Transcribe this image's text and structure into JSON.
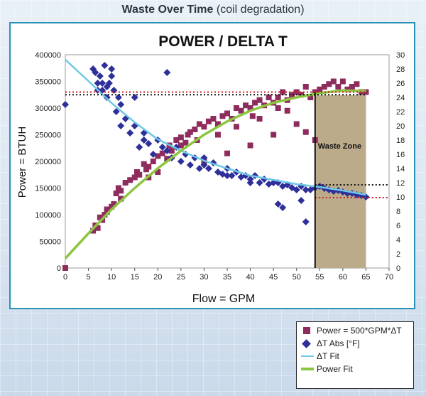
{
  "header": {
    "title_main": "Waste Over Time",
    "title_sub": "(coil degradation)"
  },
  "colors": {
    "frame": "#2a91b6",
    "power_points": "#8f2c5e",
    "dt_points": "#2e2f99",
    "dt_fit": "#6ec8e6",
    "power_fit": "#8cc63f",
    "waste_zone": "#bcab8a",
    "guide_red": "#cc2020",
    "guide_black": "#111111"
  },
  "chart_data": {
    "type": "scatter",
    "title": "POWER / DELTA T",
    "xlabel": "Flow = GPM",
    "ylabel": "Power = BTUH",
    "y2label": "",
    "xlim": [
      0,
      70
    ],
    "ylim": [
      0,
      400000
    ],
    "y2lim": [
      0,
      30
    ],
    "x_ticks": [
      "0",
      "5",
      "10",
      "15",
      "20",
      "25",
      "30",
      "35",
      "40",
      "45",
      "50",
      "55",
      "60",
      "65",
      "70"
    ],
    "y_ticks": [
      "0",
      "50000",
      "100000",
      "150000",
      "200000",
      "250000",
      "300000",
      "350000",
      "400000"
    ],
    "y2_ticks": [
      "0",
      "2",
      "4",
      "6",
      "8",
      "10",
      "12",
      "14",
      "16",
      "18",
      "20",
      "22",
      "24",
      "26",
      "28",
      "30"
    ],
    "waste_zone": {
      "label": "Waste Zone",
      "x_start": 54,
      "x_end": 65
    },
    "reference_lines": [
      {
        "axis": "left",
        "value": 330000,
        "color": "#cc2020",
        "style": "dotted"
      },
      {
        "axis": "left",
        "value": 325000,
        "color": "#111111",
        "style": "dotted"
      },
      {
        "axis": "right",
        "value": 11.7,
        "color": "#111111",
        "style": "dotted"
      },
      {
        "axis": "right",
        "value": 9.9,
        "color": "#cc2020",
        "style": "dotted"
      }
    ],
    "series": [
      {
        "name": "Power = 500*GPM*ΔT",
        "axis": "left",
        "marker": "square",
        "x": [
          0,
          6,
          6.5,
          7,
          7.5,
          8,
          8.5,
          9,
          10,
          10.5,
          11,
          11.5,
          12,
          13,
          14,
          15,
          15.5,
          16,
          17,
          17.5,
          18,
          19,
          20,
          21,
          22,
          22.5,
          23,
          24,
          25,
          26,
          26.5,
          27,
          28,
          28.5,
          29,
          30,
          31,
          32,
          33,
          34,
          35,
          36,
          37,
          38,
          39,
          40,
          40.5,
          41,
          42,
          43,
          44,
          45,
          46,
          47,
          48,
          49,
          50,
          51,
          52,
          53,
          54,
          55,
          56,
          57,
          58,
          59,
          60,
          61,
          62,
          63,
          64,
          65,
          30,
          35,
          40,
          45,
          50,
          52,
          54,
          42,
          46,
          48,
          25,
          33,
          37,
          18,
          20,
          12,
          9
        ],
        "y": [
          0,
          70000,
          80000,
          75000,
          95000,
          90000,
          100000,
          105000,
          115000,
          120000,
          140000,
          150000,
          145000,
          160000,
          165000,
          170000,
          180000,
          175000,
          195000,
          185000,
          190000,
          200000,
          210000,
          215000,
          205000,
          230000,
          220000,
          240000,
          245000,
          235000,
          250000,
          255000,
          260000,
          240000,
          270000,
          265000,
          275000,
          280000,
          270000,
          285000,
          290000,
          280000,
          300000,
          295000,
          305000,
          300000,
          285000,
          310000,
          315000,
          305000,
          320000,
          310000,
          320000,
          330000,
          315000,
          325000,
          330000,
          325000,
          340000,
          320000,
          330000,
          335000,
          340000,
          345000,
          350000,
          340000,
          350000,
          335000,
          340000,
          345000,
          330000,
          330000,
          200000,
          215000,
          230000,
          250000,
          270000,
          255000,
          240000,
          280000,
          300000,
          295000,
          230000,
          250000,
          265000,
          170000,
          180000,
          130000,
          110000
        ]
      },
      {
        "name": "ΔT Abs [°F]",
        "axis": "right",
        "marker": "diamond",
        "x": [
          0,
          6,
          6.5,
          7,
          7.5,
          8,
          8.5,
          9,
          9.5,
          10,
          10.5,
          11,
          11.5,
          12,
          13,
          14,
          15,
          16,
          17,
          18,
          19,
          20,
          21,
          22,
          23,
          24,
          25,
          26,
          27,
          28,
          29,
          30,
          31,
          32,
          33,
          34,
          35,
          36,
          37,
          38,
          39,
          40,
          41,
          42,
          43,
          44,
          45,
          46,
          47,
          48,
          49,
          50,
          51,
          52,
          53,
          54,
          55,
          56,
          57,
          58,
          59,
          60,
          61,
          62,
          63,
          64,
          65,
          8,
          9,
          10,
          15,
          17,
          22,
          7,
          12,
          46,
          47,
          51,
          52,
          30,
          35,
          40
        ],
        "y": [
          23,
          28,
          27.5,
          26,
          27,
          25,
          28.5,
          24,
          26,
          28,
          25,
          22,
          24,
          20,
          21,
          19,
          20,
          17,
          18,
          17.5,
          16,
          18,
          17,
          16.5,
          15.5,
          17,
          15,
          16,
          14.5,
          15.5,
          14,
          14.5,
          14,
          14.8,
          13.5,
          13.2,
          14,
          13,
          13.5,
          12.8,
          13,
          12.5,
          13,
          12,
          12.5,
          11.8,
          12,
          12,
          11.5,
          11.7,
          11.3,
          11,
          11.5,
          11,
          11,
          11.3,
          11.5,
          11.2,
          11,
          10.8,
          10.9,
          10.7,
          10.5,
          10.5,
          10.3,
          10.2,
          10,
          26,
          25.5,
          27,
          24,
          19,
          27.5,
          25,
          23,
          9,
          8.5,
          9.5,
          6.5,
          15.5,
          13,
          12
        ]
      },
      {
        "name": "ΔT Fit",
        "axis": "right",
        "marker": "line",
        "x": [
          0,
          5,
          10,
          15,
          20,
          25,
          30,
          35,
          40,
          45,
          50,
          55,
          60,
          65
        ],
        "y": [
          29.3,
          26.3,
          23.2,
          20.5,
          18.1,
          16.5,
          15.1,
          14.0,
          13.0,
          12.4,
          11.8,
          11.4,
          10.9,
          10.3
        ]
      },
      {
        "name": "Power Fit",
        "axis": "left",
        "marker": "line",
        "x": [
          0,
          5,
          10,
          15,
          20,
          25,
          30,
          35,
          40,
          45,
          50,
          55,
          60,
          65
        ],
        "y": [
          18000,
          65000,
          110000,
          150000,
          187000,
          220000,
          250000,
          275000,
          295000,
          310000,
          320000,
          328000,
          333000,
          332000
        ]
      }
    ]
  }
}
